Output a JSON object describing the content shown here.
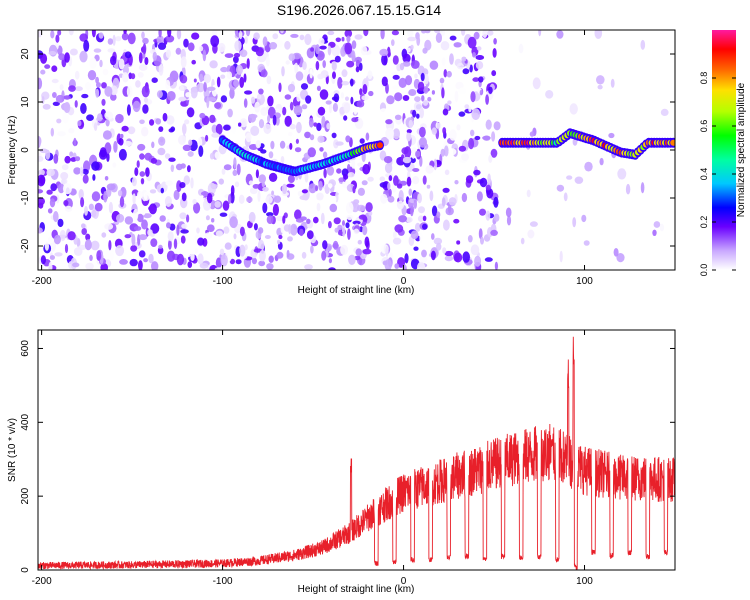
{
  "title": "S196.2026.067.15.15.G14",
  "chart_data": [
    {
      "type": "heatmap",
      "name": "spectrogram",
      "xlabel": "Height of straight line (km)",
      "ylabel": "Frequency (Hz)",
      "xlim": [
        -202,
        150
      ],
      "ylim": [
        -25,
        25
      ],
      "xticks": [
        -200,
        -100,
        0,
        100
      ],
      "yticks": [
        20,
        10,
        0,
        -10,
        -20
      ],
      "colorbar": {
        "label": "Normalized spectral amplitude",
        "range": [
          0.0,
          1.0
        ],
        "ticks": [
          0.0,
          0.2,
          0.4,
          0.6,
          0.8
        ]
      },
      "noise_regions": [
        {
          "x": [
            -202,
            -18
          ],
          "density": "high"
        },
        {
          "x": [
            -12,
            52
          ],
          "density": "high"
        },
        {
          "x": [
            52,
            150
          ],
          "density": "low"
        }
      ],
      "signal_trace": [
        {
          "x": -100,
          "y": 2.0,
          "amp": 0.35
        },
        {
          "x": -88,
          "y": -1.0,
          "amp": 0.45
        },
        {
          "x": -75,
          "y": -3.0,
          "amp": 0.35
        },
        {
          "x": -60,
          "y": -4.5,
          "amp": 0.35
        },
        {
          "x": -45,
          "y": -3.0,
          "amp": 0.4
        },
        {
          "x": -30,
          "y": -1.0,
          "amp": 0.5
        },
        {
          "x": -20,
          "y": 0.5,
          "amp": 0.8
        },
        {
          "x": -13,
          "y": 1.0,
          "amp": 0.9
        },
        {
          "x": 53,
          "y": 1.5,
          "amp": 0.9
        },
        {
          "x": 70,
          "y": 1.5,
          "amp": 0.92
        },
        {
          "x": 85,
          "y": 1.5,
          "amp": 0.6
        },
        {
          "x": 92,
          "y": 3.5,
          "amp": 0.75
        },
        {
          "x": 105,
          "y": 2.0,
          "amp": 0.9
        },
        {
          "x": 120,
          "y": -0.5,
          "amp": 0.85
        },
        {
          "x": 128,
          "y": -1.0,
          "amp": 0.7
        },
        {
          "x": 135,
          "y": 1.5,
          "amp": 0.9
        },
        {
          "x": 150,
          "y": 1.5,
          "amp": 0.9
        }
      ]
    },
    {
      "type": "line",
      "name": "snr",
      "xlabel": "Height of straight line (km)",
      "ylabel": "SNR (10 * v/v)",
      "xlim": [
        -202,
        150
      ],
      "ylim": [
        0,
        650
      ],
      "xticks": [
        -200,
        -100,
        0,
        100
      ],
      "yticks": [
        0,
        200,
        400,
        600
      ],
      "color": "#e8202a",
      "series": [
        {
          "name": "baseline",
          "x": [
            -202,
            -150,
            -100,
            -80,
            -60,
            -45,
            -30,
            -15,
            0,
            20,
            40,
            60,
            80,
            90,
            100,
            120,
            150
          ],
          "values": [
            12,
            14,
            18,
            25,
            40,
            60,
            100,
            160,
            210,
            240,
            270,
            300,
            320,
            300,
            270,
            250,
            245
          ]
        },
        {
          "name": "spikes",
          "x": [
            -29,
            82,
            91,
            94
          ],
          "values": [
            310,
            360,
            580,
            650
          ]
        },
        {
          "name": "dropouts",
          "x": [
            -15,
            -5,
            5,
            15,
            25,
            35,
            45,
            55,
            65,
            75,
            85,
            95,
            105,
            115,
            125,
            135,
            145
          ],
          "values": [
            10,
            15,
            20,
            20,
            25,
            30,
            20,
            30,
            25,
            30,
            20,
            0,
            40,
            30,
            40,
            30,
            40
          ]
        }
      ]
    }
  ]
}
